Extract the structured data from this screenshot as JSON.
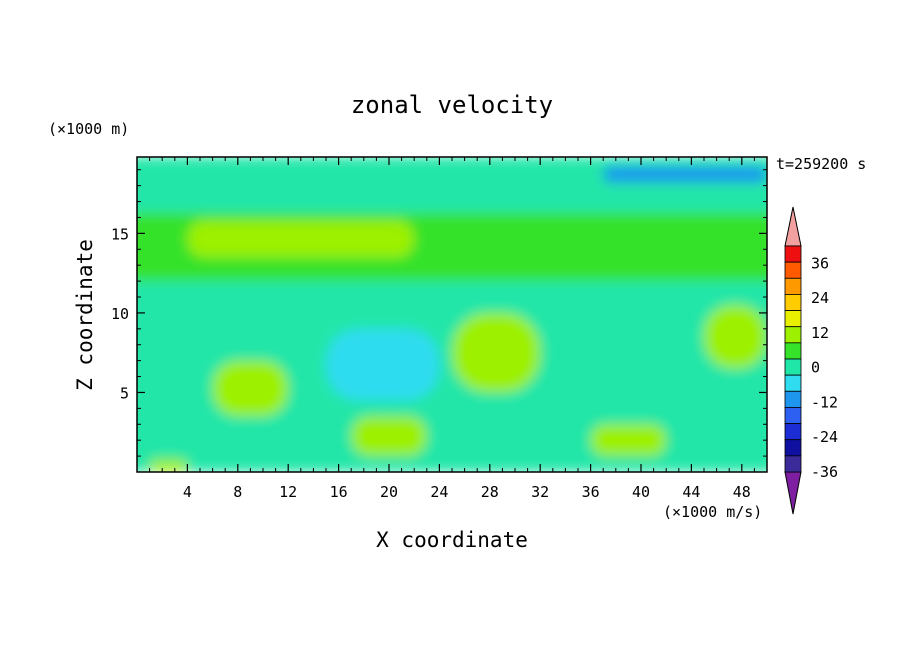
{
  "chart_data": {
    "type": "heatmap",
    "title": "zonal velocity",
    "xlabel": "X coordinate",
    "ylabel": "Z coordinate",
    "y_units": "(×1000 m)",
    "x_units": "(×1000 m/s)",
    "time_label": "t=259200 s",
    "xlim": [
      0,
      50
    ],
    "ylim": [
      0,
      19.8
    ],
    "x_ticks": [
      4,
      8,
      12,
      16,
      20,
      24,
      28,
      32,
      36,
      40,
      44,
      48
    ],
    "y_ticks": [
      5,
      10,
      15
    ],
    "colorbar": {
      "levels": [
        -42,
        -36,
        -30,
        -24,
        -18,
        -12,
        -6,
        0,
        6,
        12,
        18,
        24,
        30,
        36,
        42
      ],
      "colors": [
        "#7d1fa0",
        "#3b2a9a",
        "#1010a0",
        "#1c2dd6",
        "#2d5ff0",
        "#1f96ee",
        "#2fdcf0",
        "#20e6a8",
        "#36e22a",
        "#9cf000",
        "#e8f000",
        "#ffcc00",
        "#ff9900",
        "#ff5a00",
        "#ee1010",
        "#f2a0a0"
      ],
      "tick_labels": [
        "36",
        "24",
        "12",
        "0",
        "-12",
        "-24",
        "-36"
      ],
      "tick_values": [
        36,
        24,
        12,
        0,
        -12,
        -24,
        -36
      ]
    },
    "field_regions": [
      {
        "x": [
          0,
          50
        ],
        "y": [
          16.3,
          19.8
        ],
        "value": -3
      },
      {
        "x": [
          37,
          50
        ],
        "y": [
          18.2,
          19.2
        ],
        "value": -15
      },
      {
        "x": [
          0,
          50
        ],
        "y": [
          12.0,
          16.3
        ],
        "value": 4
      },
      {
        "x": [
          4,
          22
        ],
        "y": [
          13.5,
          15.8
        ],
        "value": 10
      },
      {
        "x": [
          0,
          50
        ],
        "y": [
          0,
          12.0
        ],
        "value": -4
      },
      {
        "x": [
          15,
          24
        ],
        "y": [
          4.5,
          9.0
        ],
        "value": -9
      },
      {
        "x": [
          25,
          32
        ],
        "y": [
          5.0,
          10.0
        ],
        "value": 8
      },
      {
        "x": [
          45,
          50
        ],
        "y": [
          6.5,
          10.5
        ],
        "value": 9
      },
      {
        "x": [
          6,
          12
        ],
        "y": [
          3.5,
          7.0
        ],
        "value": 6
      },
      {
        "x": [
          17,
          23
        ],
        "y": [
          1.0,
          3.5
        ],
        "value": 8
      },
      {
        "x": [
          36,
          42
        ],
        "y": [
          1.0,
          3.0
        ],
        "value": 7
      },
      {
        "x": [
          1,
          4
        ],
        "y": [
          0,
          0.8
        ],
        "value": 7
      }
    ]
  }
}
